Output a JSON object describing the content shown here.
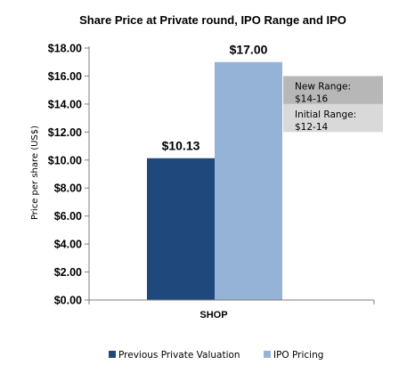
{
  "chart_data": {
    "type": "bar",
    "title": "Share Price at Private round, IPO Range and IPO",
    "ylabel": "Price per share (US$)",
    "xlabel": "",
    "categories": [
      "SHOP"
    ],
    "ylim": [
      0,
      18
    ],
    "yticks": [
      0,
      2,
      4,
      6,
      8,
      10,
      12,
      14,
      16,
      18
    ],
    "ytick_labels": [
      "$0.00",
      "$2.00",
      "$4.00",
      "$6.00",
      "$8.00",
      "$10.00",
      "$12.00",
      "$14.00",
      "$16.00",
      "$18.00"
    ],
    "series": [
      {
        "name": "Previous Private Valuation",
        "values": [
          10.13
        ],
        "label": "$10.13",
        "color": "#1f497d"
      },
      {
        "name": "IPO Pricing",
        "values": [
          17.0
        ],
        "label": "$17.00",
        "color": "#95b3d7"
      }
    ],
    "annotations": [
      {
        "line1": "New Range:",
        "line2": "$14-16",
        "range": [
          14,
          16
        ],
        "color": "#b7b7b7"
      },
      {
        "line1": "Initial Range:",
        "line2": "$12-14",
        "range": [
          12,
          14
        ],
        "color": "#d9d9d9"
      }
    ],
    "grid": false,
    "legend_position": "bottom"
  }
}
